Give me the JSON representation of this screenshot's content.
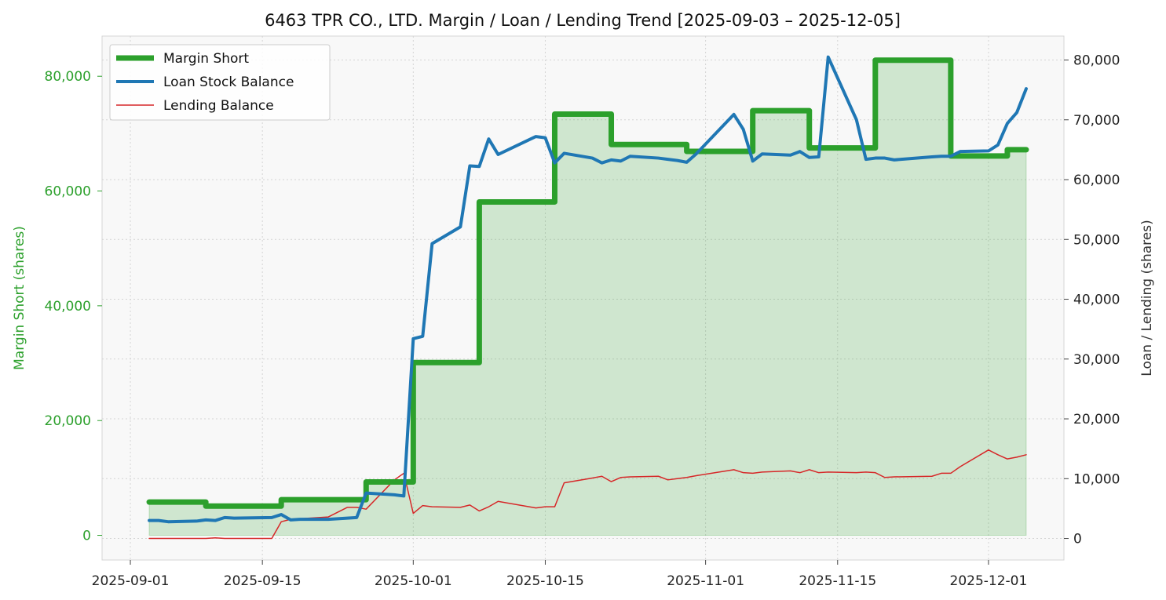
{
  "chart_data": {
    "type": "line",
    "title": "6463 TPR CO., LTD. Margin / Loan / Lending Trend [2025-09-03 – 2025-12-05]",
    "ylabel_left": "Margin Short (shares)",
    "ylabel_right": "Loan / Lending (shares)",
    "xlabel": "",
    "x_ticks": [
      "2025-09-01",
      "2025-09-15",
      "2025-10-01",
      "2025-10-15",
      "2025-11-01",
      "2025-11-15",
      "2025-12-01"
    ],
    "y_left_ticks": [
      "0",
      "20,000",
      "40,000",
      "60,000",
      "80,000"
    ],
    "y_right_ticks": [
      "0",
      "10,000",
      "20,000",
      "30,000",
      "40,000",
      "50,000",
      "60,000",
      "70,000",
      "80,000"
    ],
    "ylim_left": [
      -4300,
      87000
    ],
    "ylim_right": [
      -3600,
      84000
    ],
    "xlim": [
      "2025-08-29",
      "2025-12-09"
    ],
    "grid": true,
    "legend_position": "top-left",
    "colors": {
      "margin_short": "#2ca02c",
      "margin_fill": "#cfe7cc",
      "loan": "#1f77b4",
      "lending": "#d62728",
      "left_axis": "#2ca02c",
      "plot_bg": "#f8f8f8"
    },
    "series": [
      {
        "name": "Margin Short",
        "axis": "left",
        "style": "step",
        "points": [
          [
            "2025-09-03",
            5800
          ],
          [
            "2025-09-04",
            5800
          ],
          [
            "2025-09-05",
            5800
          ],
          [
            "2025-09-08",
            5800
          ],
          [
            "2025-09-09",
            5100
          ],
          [
            "2025-09-10",
            5100
          ],
          [
            "2025-09-11",
            5100
          ],
          [
            "2025-09-12",
            5100
          ],
          [
            "2025-09-16",
            5100
          ],
          [
            "2025-09-17",
            6200
          ],
          [
            "2025-09-18",
            6200
          ],
          [
            "2025-09-19",
            6200
          ],
          [
            "2025-09-22",
            6200
          ],
          [
            "2025-09-24",
            6200
          ],
          [
            "2025-09-25",
            6200
          ],
          [
            "2025-09-26",
            9300
          ],
          [
            "2025-09-29",
            9300
          ],
          [
            "2025-09-30",
            9300
          ],
          [
            "2025-10-01",
            30100
          ],
          [
            "2025-10-02",
            30100
          ],
          [
            "2025-10-03",
            30100
          ],
          [
            "2025-10-06",
            30100
          ],
          [
            "2025-10-07",
            30100
          ],
          [
            "2025-10-08",
            58100
          ],
          [
            "2025-10-09",
            58100
          ],
          [
            "2025-10-10",
            58100
          ],
          [
            "2025-10-14",
            58100
          ],
          [
            "2025-10-15",
            58100
          ],
          [
            "2025-10-16",
            73400
          ],
          [
            "2025-10-17",
            73400
          ],
          [
            "2025-10-20",
            73400
          ],
          [
            "2025-10-21",
            73400
          ],
          [
            "2025-10-22",
            68100
          ],
          [
            "2025-10-23",
            68100
          ],
          [
            "2025-10-24",
            68100
          ],
          [
            "2025-10-27",
            68100
          ],
          [
            "2025-10-28",
            68100
          ],
          [
            "2025-10-29",
            68100
          ],
          [
            "2025-10-30",
            66900
          ],
          [
            "2025-10-31",
            66900
          ],
          [
            "2025-11-04",
            66900
          ],
          [
            "2025-11-05",
            66900
          ],
          [
            "2025-11-06",
            74000
          ],
          [
            "2025-11-07",
            74000
          ],
          [
            "2025-11-10",
            74000
          ],
          [
            "2025-11-11",
            74000
          ],
          [
            "2025-11-12",
            67500
          ],
          [
            "2025-11-13",
            67500
          ],
          [
            "2025-11-14",
            67500
          ],
          [
            "2025-11-17",
            67500
          ],
          [
            "2025-11-18",
            67500
          ],
          [
            "2025-11-19",
            82800
          ],
          [
            "2025-11-20",
            82800
          ],
          [
            "2025-11-21",
            82800
          ],
          [
            "2025-11-25",
            82800
          ],
          [
            "2025-11-26",
            82800
          ],
          [
            "2025-11-27",
            66100
          ],
          [
            "2025-11-28",
            66100
          ],
          [
            "2025-12-01",
            66100
          ],
          [
            "2025-12-02",
            66100
          ],
          [
            "2025-12-03",
            67200
          ],
          [
            "2025-12-04",
            67200
          ],
          [
            "2025-12-05",
            67200
          ]
        ]
      },
      {
        "name": "Loan Stock Balance",
        "axis": "right",
        "style": "line",
        "points": [
          [
            "2025-09-03",
            3000
          ],
          [
            "2025-09-04",
            3000
          ],
          [
            "2025-09-05",
            2800
          ],
          [
            "2025-09-08",
            2900
          ],
          [
            "2025-09-09",
            3100
          ],
          [
            "2025-09-10",
            3000
          ],
          [
            "2025-09-11",
            3500
          ],
          [
            "2025-09-12",
            3400
          ],
          [
            "2025-09-16",
            3500
          ],
          [
            "2025-09-17",
            4000
          ],
          [
            "2025-09-18",
            3100
          ],
          [
            "2025-09-19",
            3200
          ],
          [
            "2025-09-22",
            3200
          ],
          [
            "2025-09-24",
            3400
          ],
          [
            "2025-09-25",
            3500
          ],
          [
            "2025-09-26",
            7600
          ],
          [
            "2025-09-29",
            7300
          ],
          [
            "2025-09-30",
            7100
          ],
          [
            "2025-10-01",
            33400
          ],
          [
            "2025-10-02",
            33800
          ],
          [
            "2025-10-03",
            49300
          ],
          [
            "2025-10-06",
            52100
          ],
          [
            "2025-10-07",
            62300
          ],
          [
            "2025-10-08",
            62200
          ],
          [
            "2025-10-09",
            66800
          ],
          [
            "2025-10-10",
            64200
          ],
          [
            "2025-10-14",
            67200
          ],
          [
            "2025-10-15",
            67000
          ],
          [
            "2025-10-16",
            62800
          ],
          [
            "2025-10-17",
            64400
          ],
          [
            "2025-10-20",
            63600
          ],
          [
            "2025-10-21",
            62800
          ],
          [
            "2025-10-22",
            63300
          ],
          [
            "2025-10-23",
            63100
          ],
          [
            "2025-10-24",
            63900
          ],
          [
            "2025-10-27",
            63600
          ],
          [
            "2025-10-28",
            63400
          ],
          [
            "2025-10-29",
            63200
          ],
          [
            "2025-10-30",
            62900
          ],
          [
            "2025-10-31",
            64300
          ],
          [
            "2025-11-04",
            70900
          ],
          [
            "2025-11-05",
            68400
          ],
          [
            "2025-11-06",
            63100
          ],
          [
            "2025-11-07",
            64300
          ],
          [
            "2025-11-10",
            64100
          ],
          [
            "2025-11-11",
            64700
          ],
          [
            "2025-11-12",
            63700
          ],
          [
            "2025-11-13",
            63800
          ],
          [
            "2025-11-14",
            80500
          ],
          [
            "2025-11-17",
            70000
          ],
          [
            "2025-11-18",
            63400
          ],
          [
            "2025-11-19",
            63600
          ],
          [
            "2025-11-20",
            63600
          ],
          [
            "2025-11-21",
            63300
          ],
          [
            "2025-11-25",
            63800
          ],
          [
            "2025-11-26",
            63900
          ],
          [
            "2025-11-27",
            63900
          ],
          [
            "2025-11-28",
            64700
          ],
          [
            "2025-12-01",
            64800
          ],
          [
            "2025-12-02",
            65800
          ],
          [
            "2025-12-03",
            69400
          ],
          [
            "2025-12-04",
            71200
          ],
          [
            "2025-12-05",
            75200
          ]
        ]
      },
      {
        "name": "Lending Balance",
        "axis": "right",
        "style": "line",
        "points": [
          [
            "2025-09-03",
            0
          ],
          [
            "2025-09-04",
            0
          ],
          [
            "2025-09-05",
            0
          ],
          [
            "2025-09-08",
            0
          ],
          [
            "2025-09-09",
            0
          ],
          [
            "2025-09-10",
            100
          ],
          [
            "2025-09-11",
            0
          ],
          [
            "2025-09-12",
            0
          ],
          [
            "2025-09-16",
            0
          ],
          [
            "2025-09-17",
            2800
          ],
          [
            "2025-09-18",
            3200
          ],
          [
            "2025-09-19",
            3300
          ],
          [
            "2025-09-22",
            3600
          ],
          [
            "2025-09-24",
            5200
          ],
          [
            "2025-09-25",
            5200
          ],
          [
            "2025-09-26",
            4900
          ],
          [
            "2025-09-29",
            9800
          ],
          [
            "2025-09-30",
            10900
          ],
          [
            "2025-10-01",
            4200
          ],
          [
            "2025-10-02",
            5500
          ],
          [
            "2025-10-03",
            5300
          ],
          [
            "2025-10-06",
            5200
          ],
          [
            "2025-10-07",
            5600
          ],
          [
            "2025-10-08",
            4600
          ],
          [
            "2025-10-09",
            5300
          ],
          [
            "2025-10-10",
            6200
          ],
          [
            "2025-10-14",
            5100
          ],
          [
            "2025-10-15",
            5300
          ],
          [
            "2025-10-16",
            5300
          ],
          [
            "2025-10-17",
            9300
          ],
          [
            "2025-10-20",
            10100
          ],
          [
            "2025-10-21",
            10400
          ],
          [
            "2025-10-22",
            9500
          ],
          [
            "2025-10-23",
            10200
          ],
          [
            "2025-10-24",
            10300
          ],
          [
            "2025-10-27",
            10400
          ],
          [
            "2025-10-28",
            9800
          ],
          [
            "2025-10-29",
            10000
          ],
          [
            "2025-10-30",
            10200
          ],
          [
            "2025-10-31",
            10500
          ],
          [
            "2025-11-04",
            11500
          ],
          [
            "2025-11-05",
            11000
          ],
          [
            "2025-11-06",
            10900
          ],
          [
            "2025-11-07",
            11100
          ],
          [
            "2025-11-10",
            11300
          ],
          [
            "2025-11-11",
            11000
          ],
          [
            "2025-11-12",
            11500
          ],
          [
            "2025-11-13",
            11000
          ],
          [
            "2025-11-14",
            11100
          ],
          [
            "2025-11-17",
            11000
          ],
          [
            "2025-11-18",
            11100
          ],
          [
            "2025-11-19",
            11000
          ],
          [
            "2025-11-20",
            10200
          ],
          [
            "2025-11-21",
            10300
          ],
          [
            "2025-11-25",
            10400
          ],
          [
            "2025-11-26",
            10900
          ],
          [
            "2025-11-27",
            10900
          ],
          [
            "2025-11-28",
            12000
          ],
          [
            "2025-12-01",
            14800
          ],
          [
            "2025-12-02",
            14000
          ],
          [
            "2025-12-03",
            13300
          ],
          [
            "2025-12-04",
            13600
          ],
          [
            "2025-12-05",
            14000
          ]
        ]
      }
    ]
  }
}
